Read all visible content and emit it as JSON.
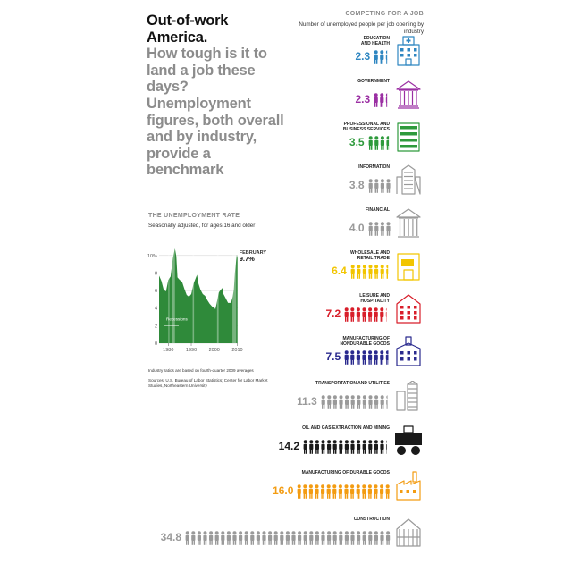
{
  "headline": {
    "bold_part": "Out-of-work America.",
    "gray_part": "How tough is it to land a job these days? Unemployment figures, both overall and by industry, provide a benchmark"
  },
  "competing": {
    "title": "COMPETING FOR A JOB",
    "subtitle": "Number of unemployed people per job opening by industry"
  },
  "rate_section": {
    "title": "THE UNEMPLOYMENT RATE",
    "subtitle": "Seasonally adjusted, for ages 16 and older",
    "latest_label": "FEBRUARY",
    "latest_value": "9.7%",
    "recession_label": "Recessions"
  },
  "notes": {
    "industry_note": "Industry ratios are based on fourth-quarter 2009 averages",
    "sources": "Sources: U.S. Bureau of Labor Statistics; Center for Labor Market Studies, Northeastern University"
  },
  "colors": {
    "blue": "#2e86c1",
    "purple": "#9b2fa3",
    "green": "#2e9a3c",
    "gray": "#9a9a9a",
    "yellow": "#f2c500",
    "red": "#d81e2a",
    "navy": "#2a2a8e",
    "black": "#1a1a1a",
    "orange": "#f39c12",
    "chart_green": "#2f8a3a"
  },
  "chart_data": [
    {
      "type": "area",
      "title": "THE UNEMPLOYMENT RATE",
      "subtitle": "Seasonally adjusted, for ages 16 and older",
      "xlabel": "",
      "ylabel": "",
      "x_ticks": [
        "1980",
        "1990",
        "2000",
        "2010"
      ],
      "y_ticks": [
        "0",
        "2",
        "4",
        "6",
        "8",
        "10%"
      ],
      "xlim": [
        1976,
        2010.2
      ],
      "ylim": [
        0,
        11
      ],
      "grid": true,
      "x": [
        1976,
        1977,
        1978,
        1979,
        1980,
        1981,
        1982,
        1982.9,
        1983.5,
        1984,
        1985,
        1986,
        1987,
        1988,
        1989,
        1990,
        1991,
        1992.5,
        1993,
        1994,
        1995,
        1996,
        1997,
        1998,
        1999,
        2000,
        2000.5,
        2001,
        2002,
        2003.5,
        2004,
        2005,
        2006,
        2007,
        2007.5,
        2008,
        2008.5,
        2009,
        2009.5,
        2009.8,
        2010.1
      ],
      "series": [
        {
          "values": [
            7.7,
            7.1,
            6.1,
            5.9,
            7.2,
            7.6,
            9.7,
            10.8,
            9.9,
            7.5,
            7.2,
            7.0,
            6.2,
            5.5,
            5.3,
            5.6,
            6.8,
            7.8,
            6.9,
            6.1,
            5.6,
            5.4,
            4.9,
            4.5,
            4.2,
            4.0,
            3.9,
            4.5,
            5.8,
            6.3,
            5.6,
            5.1,
            4.6,
            4.6,
            4.8,
            5.3,
            6.1,
            8.1,
            9.4,
            10.1,
            9.7
          ]
        }
      ],
      "recessions": [
        [
          1980,
          1980.5
        ],
        [
          1981.5,
          1982.9
        ],
        [
          1990.6,
          1991.2
        ],
        [
          2001.2,
          2001.9
        ],
        [
          2007.9,
          2009.5
        ]
      ],
      "annotations": [
        "FEBRUARY",
        "9.7%",
        "Recessions"
      ]
    },
    {
      "type": "bar",
      "title": "COMPETING FOR A JOB",
      "subtitle": "Number of unemployed people per job opening by industry",
      "categories": [
        "EDUCATION AND HEALTH",
        "GOVERNMENT",
        "PROFESSIONAL AND BUSINESS SERVICES",
        "INFORMATION",
        "FINANCIAL",
        "WHOLESALE AND RETAIL TRADE",
        "LEISURE AND HOSPITALITY",
        "MANUFACTURING OF NONDURABLE GOODS",
        "TRANSPORTATION AND UTILITIES",
        "OIL AND GAS EXTRACTION AND MINING",
        "MANUFACTURING OF DURABLE GOODS",
        "CONSTRUCTION"
      ],
      "values": [
        2.3,
        2.3,
        3.5,
        3.8,
        4.0,
        6.4,
        7.2,
        7.5,
        11.3,
        14.2,
        16.0,
        34.8
      ]
    }
  ],
  "industries": [
    {
      "label1": "EDUCATION",
      "label2": "AND HEALTH",
      "value": "2.3",
      "num": 2.3,
      "color": "#2e86c1",
      "icon": "hospital-icon"
    },
    {
      "label1": "GOVERNMENT",
      "label2": "",
      "value": "2.3",
      "num": 2.3,
      "color": "#9b2fa3",
      "icon": "capitol-icon"
    },
    {
      "label1": "PROFESSIONAL AND",
      "label2": "BUSINESS SERVICES",
      "value": "3.5",
      "num": 3.5,
      "color": "#2e9a3c",
      "icon": "office-building-icon"
    },
    {
      "label1": "INFORMATION",
      "label2": "",
      "value": "3.8",
      "num": 3.8,
      "color": "#9a9a9a",
      "icon": "tower-building-icon"
    },
    {
      "label1": "FINANCIAL",
      "label2": "",
      "value": "4.0",
      "num": 4.0,
      "color": "#9a9a9a",
      "icon": "bank-icon"
    },
    {
      "label1": "WHOLESALE AND",
      "label2": "RETAIL TRADE",
      "value": "6.4",
      "num": 6.4,
      "color": "#f2c500",
      "icon": "store-icon"
    },
    {
      "label1": "LEISURE AND",
      "label2": "HOSPITALITY",
      "value": "7.2",
      "num": 7.2,
      "color": "#d81e2a",
      "icon": "hotel-icon"
    },
    {
      "label1": "MANUFACTURING OF",
      "label2": "NONDURABLE GOODS",
      "value": "7.5",
      "num": 7.5,
      "color": "#2a2a8e",
      "icon": "factory-icon"
    },
    {
      "label1": "TRANSPORTATION AND UTILITIES",
      "label2": "",
      "value": "11.3",
      "num": 11.3,
      "color": "#9a9a9a",
      "icon": "silo-icon"
    },
    {
      "label1": "OIL AND GAS EXTRACTION AND MINING",
      "label2": "",
      "value": "14.2",
      "num": 14.2,
      "color": "#1a1a1a",
      "icon": "mining-truck-icon"
    },
    {
      "label1": "MANUFACTURING OF DURABLE GOODS",
      "label2": "",
      "value": "16.0",
      "num": 16.0,
      "color": "#f39c12",
      "icon": "plant-icon"
    },
    {
      "label1": "CONSTRUCTION",
      "label2": "",
      "value": "34.8",
      "num": 34.8,
      "color": "#9a9a9a",
      "icon": "house-frame-icon"
    }
  ]
}
